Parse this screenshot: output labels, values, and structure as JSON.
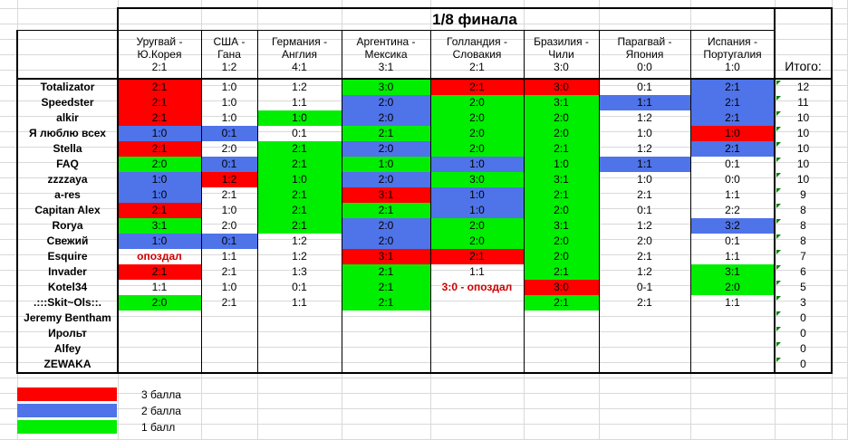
{
  "title": "1/8 финала",
  "total_label": "Итого:",
  "matches": [
    {
      "teams": "Уругвай -",
      "teams2": "Ю.Корея",
      "score": "2:1"
    },
    {
      "teams": "США -",
      "teams2": "Гана",
      "score": "1:2"
    },
    {
      "teams": "Германия -",
      "teams2": "Англия",
      "score": "4:1"
    },
    {
      "teams": "Аргентина -",
      "teams2": "Мексика",
      "score": "3:1"
    },
    {
      "teams": "Голландия -",
      "teams2": "Словакия",
      "score": "2:1"
    },
    {
      "teams": "Бразилия -",
      "teams2": "Чили",
      "score": "3:0"
    },
    {
      "teams": "Парагвай -",
      "teams2": "Япония",
      "score": "0:0"
    },
    {
      "teams": "Испания -",
      "teams2": "Португалия",
      "score": "1:0"
    }
  ],
  "colors": {
    "3": "#ff0000",
    "2": "#4f73e8",
    "1": "#00ee00",
    "0": "#ffffff"
  },
  "rows": [
    {
      "name": "Totalizator",
      "total": "12",
      "cells": [
        {
          "t": "2:1",
          "p": 3
        },
        {
          "t": "1:0",
          "p": 0
        },
        {
          "t": "1:2",
          "p": 0
        },
        {
          "t": "3:0",
          "p": 1
        },
        {
          "t": "2:1",
          "p": 3
        },
        {
          "t": "3:0",
          "p": 3
        },
        {
          "t": "0:1",
          "p": 0
        },
        {
          "t": "2:1",
          "p": 2
        }
      ]
    },
    {
      "name": "Speedster",
      "total": "11",
      "cells": [
        {
          "t": "2:1",
          "p": 3
        },
        {
          "t": "1:0",
          "p": 0
        },
        {
          "t": "1:1",
          "p": 0
        },
        {
          "t": "2:0",
          "p": 2
        },
        {
          "t": "2:0",
          "p": 1
        },
        {
          "t": "3:1",
          "p": 1
        },
        {
          "t": "1:1",
          "p": 2
        },
        {
          "t": "2:1",
          "p": 2
        }
      ]
    },
    {
      "name": "alkir",
      "total": "10",
      "cells": [
        {
          "t": "2:1",
          "p": 3
        },
        {
          "t": "1:0",
          "p": 0
        },
        {
          "t": "1:0",
          "p": 1
        },
        {
          "t": "2:0",
          "p": 2
        },
        {
          "t": "2:0",
          "p": 1
        },
        {
          "t": "2:0",
          "p": 1
        },
        {
          "t": "1:2",
          "p": 0
        },
        {
          "t": "2:1",
          "p": 2
        }
      ]
    },
    {
      "name": "Я люблю всех",
      "total": "10",
      "cells": [
        {
          "t": "1:0",
          "p": 2
        },
        {
          "t": "0:1",
          "p": 2
        },
        {
          "t": "0:1",
          "p": 0
        },
        {
          "t": "2:1",
          "p": 1
        },
        {
          "t": "2:0",
          "p": 1
        },
        {
          "t": "2:0",
          "p": 1
        },
        {
          "t": "1:0",
          "p": 0
        },
        {
          "t": "1:0",
          "p": 3
        }
      ]
    },
    {
      "name": "Stella",
      "total": "10",
      "cells": [
        {
          "t": "2:1",
          "p": 3
        },
        {
          "t": "2:0",
          "p": 0
        },
        {
          "t": "2:1",
          "p": 1
        },
        {
          "t": "2:0",
          "p": 2
        },
        {
          "t": "2:0",
          "p": 1
        },
        {
          "t": "2:1",
          "p": 1
        },
        {
          "t": "1:2",
          "p": 0
        },
        {
          "t": "2:1",
          "p": 2
        }
      ]
    },
    {
      "name": "FAQ",
      "total": "10",
      "cells": [
        {
          "t": "2:0",
          "p": 1
        },
        {
          "t": "0:1",
          "p": 2
        },
        {
          "t": "2:1",
          "p": 1
        },
        {
          "t": "1:0",
          "p": 1
        },
        {
          "t": "1:0",
          "p": 2
        },
        {
          "t": "1:0",
          "p": 1
        },
        {
          "t": "1:1",
          "p": 2
        },
        {
          "t": "0:1",
          "p": 0
        }
      ]
    },
    {
      "name": "zzzzaya",
      "total": "10",
      "cells": [
        {
          "t": "1:0",
          "p": 2
        },
        {
          "t": "1:2",
          "p": 3
        },
        {
          "t": "1:0",
          "p": 1
        },
        {
          "t": "2:0",
          "p": 2
        },
        {
          "t": "3:0",
          "p": 1
        },
        {
          "t": "3:1",
          "p": 1
        },
        {
          "t": "1:0",
          "p": 0
        },
        {
          "t": "0:0",
          "p": 0
        }
      ]
    },
    {
      "name": "a-res",
      "total": "9",
      "cells": [
        {
          "t": "1:0",
          "p": 2
        },
        {
          "t": "2:1",
          "p": 0
        },
        {
          "t": "2:1",
          "p": 1
        },
        {
          "t": "3:1",
          "p": 3
        },
        {
          "t": "1:0",
          "p": 2
        },
        {
          "t": "2:1",
          "p": 1
        },
        {
          "t": "2:1",
          "p": 0
        },
        {
          "t": "1:1",
          "p": 0
        }
      ]
    },
    {
      "name": "Capitan Alex",
      "total": "8",
      "cells": [
        {
          "t": "2:1",
          "p": 3
        },
        {
          "t": "1:0",
          "p": 0
        },
        {
          "t": "2:1",
          "p": 1
        },
        {
          "t": "2:1",
          "p": 1
        },
        {
          "t": "1:0",
          "p": 2
        },
        {
          "t": "2:0",
          "p": 1
        },
        {
          "t": "0:1",
          "p": 0
        },
        {
          "t": "2:2",
          "p": 0
        }
      ]
    },
    {
      "name": "Rorya",
      "total": "8",
      "cells": [
        {
          "t": "3:1",
          "p": 1
        },
        {
          "t": "2:0",
          "p": 0
        },
        {
          "t": "2:1",
          "p": 1
        },
        {
          "t": "2:0",
          "p": 2
        },
        {
          "t": "2:0",
          "p": 1
        },
        {
          "t": "3:1",
          "p": 1
        },
        {
          "t": "1:2",
          "p": 0
        },
        {
          "t": "3:2",
          "p": 2
        }
      ]
    },
    {
      "name": "Свежий",
      "total": "8",
      "cells": [
        {
          "t": "1:0",
          "p": 2
        },
        {
          "t": "0:1",
          "p": 2
        },
        {
          "t": "1:2",
          "p": 0
        },
        {
          "t": "2:0",
          "p": 2
        },
        {
          "t": "2:0",
          "p": 1
        },
        {
          "t": "2:0",
          "p": 1
        },
        {
          "t": "2:0",
          "p": 0
        },
        {
          "t": "0:1",
          "p": 0
        }
      ]
    },
    {
      "name": "Esquire",
      "total": "7",
      "cells": [
        {
          "t": "опоздал",
          "p": 0,
          "late": true
        },
        {
          "t": "1:1",
          "p": 0
        },
        {
          "t": "1:2",
          "p": 0
        },
        {
          "t": "3:1",
          "p": 3
        },
        {
          "t": "2:1",
          "p": 3
        },
        {
          "t": "2:0",
          "p": 1
        },
        {
          "t": "2:1",
          "p": 0
        },
        {
          "t": "1:1",
          "p": 0
        }
      ]
    },
    {
      "name": "Invader",
      "total": "6",
      "cells": [
        {
          "t": "2:1",
          "p": 3
        },
        {
          "t": "2:1",
          "p": 0
        },
        {
          "t": "1:3",
          "p": 0
        },
        {
          "t": "2:1",
          "p": 1
        },
        {
          "t": "1:1",
          "p": 0
        },
        {
          "t": "2:1",
          "p": 1
        },
        {
          "t": "1:2",
          "p": 0
        },
        {
          "t": "3:1",
          "p": 1
        }
      ]
    },
    {
      "name": "Kotel34",
      "total": "5",
      "cells": [
        {
          "t": "1:1",
          "p": 0
        },
        {
          "t": "1:0",
          "p": 0
        },
        {
          "t": "0:1",
          "p": 0
        },
        {
          "t": "2:1",
          "p": 1
        },
        {
          "t": "3:0 - опоздал",
          "p": 0,
          "late": true,
          "span": true
        },
        {
          "t": "3:0",
          "p": 3
        },
        {
          "t": "0-1",
          "p": 0
        },
        {
          "t": "2:0",
          "p": 1
        }
      ]
    },
    {
      "name": ".:::Skit~Ols::.",
      "total": "3",
      "cells": [
        {
          "t": "2:0",
          "p": 1
        },
        {
          "t": "2:1",
          "p": 0
        },
        {
          "t": "1:1",
          "p": 0
        },
        {
          "t": "2:1",
          "p": 1
        },
        {
          "t": "",
          "p": 0
        },
        {
          "t": "2:1",
          "p": 1
        },
        {
          "t": "2:1",
          "p": 0
        },
        {
          "t": "1:1",
          "p": 0
        }
      ]
    },
    {
      "name": "Jeremy Bentham",
      "total": "0",
      "cells": [
        {
          "t": "",
          "p": 0
        },
        {
          "t": "",
          "p": 0
        },
        {
          "t": "",
          "p": 0
        },
        {
          "t": "",
          "p": 0
        },
        {
          "t": "",
          "p": 0
        },
        {
          "t": "",
          "p": 0
        },
        {
          "t": "",
          "p": 0
        },
        {
          "t": "",
          "p": 0
        }
      ]
    },
    {
      "name": "Ирольт",
      "total": "0",
      "cells": [
        {
          "t": "",
          "p": 0
        },
        {
          "t": "",
          "p": 0
        },
        {
          "t": "",
          "p": 0
        },
        {
          "t": "",
          "p": 0
        },
        {
          "t": "",
          "p": 0
        },
        {
          "t": "",
          "p": 0
        },
        {
          "t": "",
          "p": 0
        },
        {
          "t": "",
          "p": 0
        }
      ]
    },
    {
      "name": "Alfey",
      "total": "0",
      "cells": [
        {
          "t": "",
          "p": 0
        },
        {
          "t": "",
          "p": 0
        },
        {
          "t": "",
          "p": 0
        },
        {
          "t": "",
          "p": 0
        },
        {
          "t": "",
          "p": 0
        },
        {
          "t": "",
          "p": 0
        },
        {
          "t": "",
          "p": 0
        },
        {
          "t": "",
          "p": 0
        }
      ]
    },
    {
      "name": "ZEWAKA",
      "total": "0",
      "cells": [
        {
          "t": "",
          "p": 0
        },
        {
          "t": "",
          "p": 0
        },
        {
          "t": "",
          "p": 0
        },
        {
          "t": "",
          "p": 0
        },
        {
          "t": "",
          "p": 0
        },
        {
          "t": "",
          "p": 0
        },
        {
          "t": "",
          "p": 0
        },
        {
          "t": "",
          "p": 0
        }
      ]
    }
  ],
  "legend": [
    {
      "color": "#ff0000",
      "label": "3 балла"
    },
    {
      "color": "#4f73e8",
      "label": "2 балла"
    },
    {
      "color": "#00ee00",
      "label": "1 балл"
    }
  ]
}
